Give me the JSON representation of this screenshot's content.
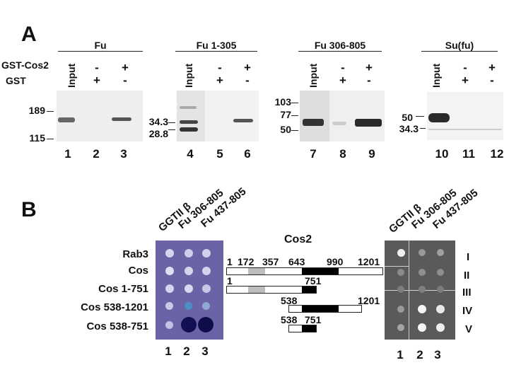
{
  "panel_a": {
    "letter": "A",
    "row_labels": {
      "gst_cos2": "GST-Cos2",
      "gst": "GST"
    },
    "gels": [
      {
        "header": "Fu",
        "input": "Input",
        "cos2_row": [
          "-",
          "+"
        ],
        "gst_row": [
          "+",
          "-"
        ],
        "markers": [
          "189",
          "115"
        ],
        "lanes": [
          "1",
          "2",
          "3"
        ]
      },
      {
        "header": "Fu 1-305",
        "input": "Input",
        "cos2_row": [
          "-",
          "+"
        ],
        "gst_row": [
          "+",
          "-"
        ],
        "markers": [
          "34.3",
          "28.8"
        ],
        "lanes": [
          "4",
          "5",
          "6"
        ]
      },
      {
        "header": "Fu 306-805",
        "input": "Input",
        "cos2_row": [
          "-",
          "+"
        ],
        "gst_row": [
          "+",
          "-"
        ],
        "markers": [
          "103",
          "77",
          "50"
        ],
        "lanes": [
          "7",
          "8",
          "9"
        ]
      },
      {
        "header": "Su(fu)",
        "input": "Input",
        "cos2_row": [
          "-",
          "+"
        ],
        "gst_row": [
          "+",
          "-"
        ],
        "markers": [
          "50",
          "34.3"
        ],
        "lanes": [
          "10",
          "11",
          "12"
        ]
      }
    ]
  },
  "panel_b": {
    "letter": "B",
    "columns": [
      "GGTII β",
      "Fu 306-805",
      "Fu 437-805"
    ],
    "rows": [
      "Rab3",
      "Cos",
      "Cos 1-751",
      "Cos 538-1201",
      "Cos 538-751"
    ],
    "lanes": [
      "1",
      "2",
      "3"
    ],
    "diagram": {
      "title": "Cos2",
      "full_numbers": [
        "1",
        "172",
        "357",
        "643",
        "990",
        "1201"
      ],
      "c1_751": [
        "1",
        "751"
      ],
      "c538_1201": [
        "538",
        "1201"
      ],
      "c538_751": [
        "538",
        "751"
      ]
    },
    "roman": [
      "I",
      "II",
      "III",
      "IV",
      "V"
    ]
  }
}
